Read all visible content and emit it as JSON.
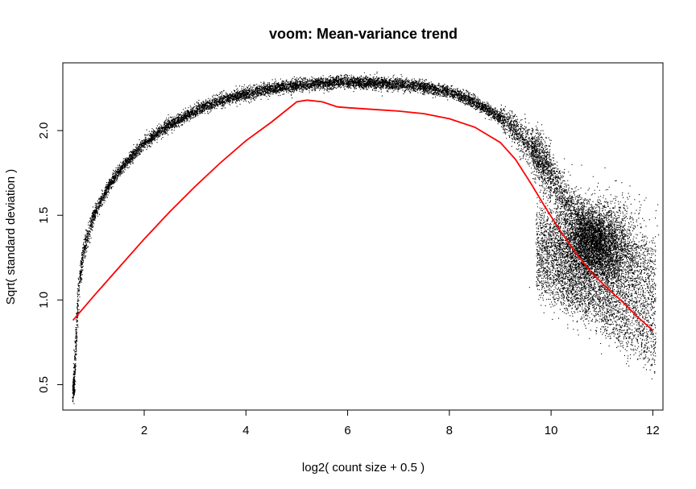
{
  "chart_data": {
    "type": "scatter",
    "title": "voom: Mean-variance trend",
    "xlabel": "log2( count size + 0.5 )",
    "ylabel": "Sqrt( standard deviation )",
    "xlim": [
      0.4,
      12.2
    ],
    "ylim": [
      0.35,
      2.4
    ],
    "x_ticks": [
      2,
      4,
      6,
      8,
      10,
      12
    ],
    "y_ticks": [
      0.5,
      1.0,
      1.5,
      2.0
    ],
    "y_tick_labels": [
      "0.5",
      "1.0",
      "1.5",
      "2.0"
    ],
    "grid": false,
    "legend": "none",
    "colors": {
      "points": "#000000",
      "trend": "#ff0000"
    },
    "series": [
      {
        "kind": "points",
        "description_band_x": [
          0.6,
          0.65,
          0.7,
          0.8,
          1.0,
          1.3,
          1.6,
          2.0,
          2.5,
          3.0,
          3.5,
          4.0,
          4.5,
          5.0,
          5.5,
          6.0,
          6.5,
          7.0,
          7.5,
          8.0,
          8.5,
          9.0,
          9.3,
          9.6,
          9.9,
          10.2,
          10.5,
          10.8,
          11.0
        ],
        "description_band_y": [
          0.45,
          0.75,
          1.05,
          1.3,
          1.5,
          1.68,
          1.8,
          1.93,
          2.04,
          2.12,
          2.18,
          2.22,
          2.25,
          2.27,
          2.285,
          2.29,
          2.285,
          2.275,
          2.26,
          2.23,
          2.17,
          2.08,
          2.0,
          1.9,
          1.78,
          1.62,
          1.5,
          1.4,
          1.35
        ]
      },
      {
        "kind": "trend",
        "x": [
          0.6,
          1.0,
          1.5,
          2.0,
          2.5,
          3.0,
          3.5,
          4.0,
          4.5,
          5.0,
          5.2,
          5.5,
          5.8,
          6.0,
          6.5,
          7.0,
          7.5,
          8.0,
          8.5,
          9.0,
          9.3,
          9.6,
          9.9,
          10.2,
          10.5,
          10.8,
          11.1,
          11.4,
          11.7,
          12.0
        ],
        "y": [
          0.88,
          1.02,
          1.19,
          1.36,
          1.52,
          1.67,
          1.81,
          1.94,
          2.05,
          2.17,
          2.18,
          2.17,
          2.14,
          2.135,
          2.125,
          2.115,
          2.1,
          2.07,
          2.02,
          1.93,
          1.83,
          1.69,
          1.54,
          1.4,
          1.27,
          1.16,
          1.07,
          0.99,
          0.9,
          0.82
        ]
      }
    ]
  }
}
